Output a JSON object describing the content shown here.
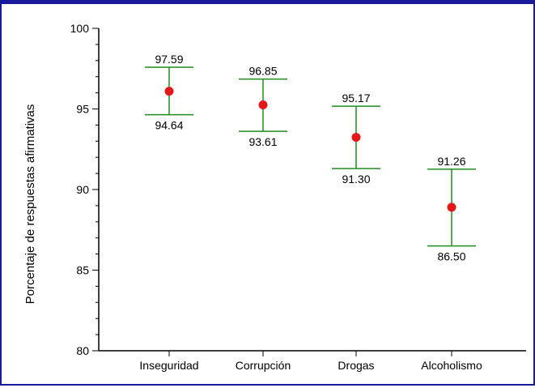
{
  "chart_data": {
    "type": "scatter",
    "title": "",
    "xlabel": "",
    "ylabel": "Porcentaje de respuestas afirmativas",
    "ylim": [
      80,
      100
    ],
    "yticks": [
      "80",
      "85",
      "90",
      "95",
      "100"
    ],
    "grid": false,
    "categories": [
      "Inseguridad",
      "Corrupción",
      "Drogas",
      "Alcoholismo"
    ],
    "points": [
      96.1,
      95.25,
      93.24,
      88.9
    ],
    "upper": [
      97.59,
      96.85,
      95.17,
      91.26
    ],
    "lower": [
      94.64,
      93.61,
      91.3,
      86.5
    ],
    "upper_labels": [
      "97.59",
      "96.85",
      "95.17",
      "91.26"
    ],
    "lower_labels": [
      "94.64",
      "93.61",
      "91.30",
      "86.50"
    ],
    "colors": {
      "frame": "#1a1a9c",
      "error_bar": "#1e8c1e",
      "point": "#e31818",
      "axis": "#000000"
    }
  }
}
